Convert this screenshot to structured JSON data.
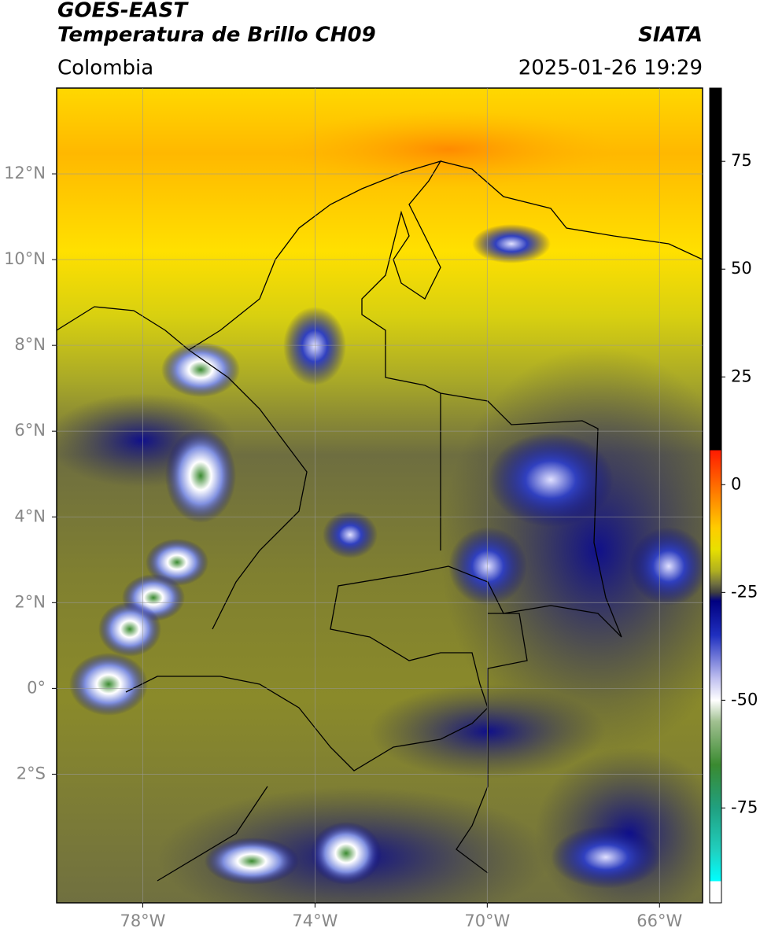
{
  "header": {
    "satellite": "GOES-EAST",
    "product": "Temperatura de Brillo CH09",
    "source": "SIATA",
    "region": "Colombia",
    "datetime": "2025-01-26 19:29"
  },
  "map": {
    "xlim": [
      -80,
      -65
    ],
    "ylim": [
      -5,
      14
    ],
    "xticks": [
      {
        "value": -78,
        "label": "78°W"
      },
      {
        "value": -74,
        "label": "74°W"
      },
      {
        "value": -70,
        "label": "70°W"
      },
      {
        "value": -66,
        "label": "66°W"
      }
    ],
    "yticks": [
      {
        "value": 12,
        "label": "12°N"
      },
      {
        "value": 10,
        "label": "10°N"
      },
      {
        "value": 8,
        "label": "8°N"
      },
      {
        "value": 6,
        "label": "6°N"
      },
      {
        "value": 4,
        "label": "4°N"
      },
      {
        "value": 2,
        "label": "2°N"
      },
      {
        "value": 0,
        "label": "0°"
      },
      {
        "value": -2,
        "label": "2°S"
      }
    ],
    "grid": true
  },
  "colorbar": {
    "lim": [
      -97,
      92
    ],
    "ticks": [
      75,
      50,
      25,
      0,
      -25,
      -50,
      -75
    ],
    "colormap": [
      {
        "value": 92,
        "color": "#000000"
      },
      {
        "value": 8,
        "color": "#000000"
      },
      {
        "value": 8,
        "color": "#ff1a00"
      },
      {
        "value": 0,
        "color": "#ff6a00"
      },
      {
        "value": -10,
        "color": "#ffcc00"
      },
      {
        "value": -15,
        "color": "#e8e000"
      },
      {
        "value": -20,
        "color": "#b0b020"
      },
      {
        "value": -23,
        "color": "#707040"
      },
      {
        "value": -25,
        "color": "#404040"
      },
      {
        "value": -27,
        "color": "#000080"
      },
      {
        "value": -35,
        "color": "#2030c0"
      },
      {
        "value": -45,
        "color": "#c0c0f0"
      },
      {
        "value": -50,
        "color": "#ffffff"
      },
      {
        "value": -55,
        "color": "#a0c090"
      },
      {
        "value": -65,
        "color": "#3a8a30"
      },
      {
        "value": -75,
        "color": "#20a080"
      },
      {
        "value": -85,
        "color": "#20d0c0"
      },
      {
        "value": -92,
        "color": "#00ffff"
      },
      {
        "value": -92,
        "color": "#ffffff"
      },
      {
        "value": -97,
        "color": "#ffffff"
      }
    ]
  }
}
